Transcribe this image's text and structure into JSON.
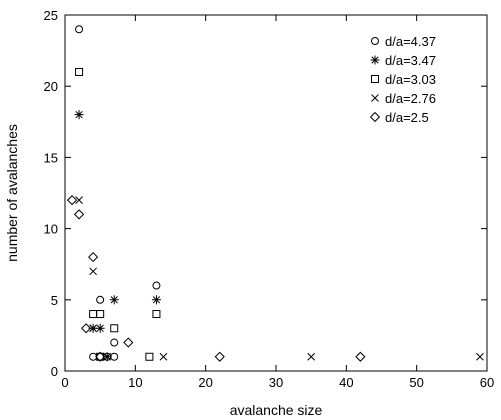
{
  "chart_data": {
    "type": "scatter",
    "title": "",
    "xlabel": "avalanche size",
    "ylabel": "number of avalanches",
    "xlim": [
      0,
      60
    ],
    "ylim": [
      0,
      25
    ],
    "xticks": [
      0,
      10,
      20,
      30,
      40,
      50,
      60
    ],
    "yticks": [
      0,
      5,
      10,
      15,
      20,
      25
    ],
    "grid": false,
    "legend_position": "top-right",
    "series": [
      {
        "name": "d/a=4.37",
        "marker": "circle",
        "points": [
          [
            2,
            24
          ],
          [
            13,
            6
          ],
          [
            5,
            5
          ],
          [
            7,
            2
          ],
          [
            4,
            1
          ],
          [
            5,
            1
          ],
          [
            6,
            1
          ],
          [
            7,
            1
          ]
        ]
      },
      {
        "name": "d/a=3.47",
        "marker": "asterisk",
        "points": [
          [
            2,
            18
          ],
          [
            7,
            5
          ],
          [
            13,
            5
          ],
          [
            4,
            3
          ],
          [
            5,
            3
          ],
          [
            6,
            1
          ]
        ]
      },
      {
        "name": "d/a=3.03",
        "marker": "square",
        "points": [
          [
            2,
            21
          ],
          [
            4,
            4
          ],
          [
            5,
            4
          ],
          [
            13,
            4
          ],
          [
            7,
            3
          ],
          [
            5,
            1
          ],
          [
            12,
            1
          ]
        ]
      },
      {
        "name": "d/a=2.76",
        "marker": "cross",
        "points": [
          [
            2,
            12
          ],
          [
            4,
            7
          ],
          [
            4,
            3
          ],
          [
            6,
            1
          ],
          [
            14,
            1
          ],
          [
            35,
            1
          ],
          [
            59,
            1
          ]
        ]
      },
      {
        "name": "d/a=2.5",
        "marker": "diamond",
        "points": [
          [
            1,
            12
          ],
          [
            2,
            11
          ],
          [
            4,
            8
          ],
          [
            3,
            3
          ],
          [
            9,
            2
          ],
          [
            5,
            1
          ],
          [
            22,
            1
          ],
          [
            42,
            1
          ]
        ]
      }
    ]
  }
}
